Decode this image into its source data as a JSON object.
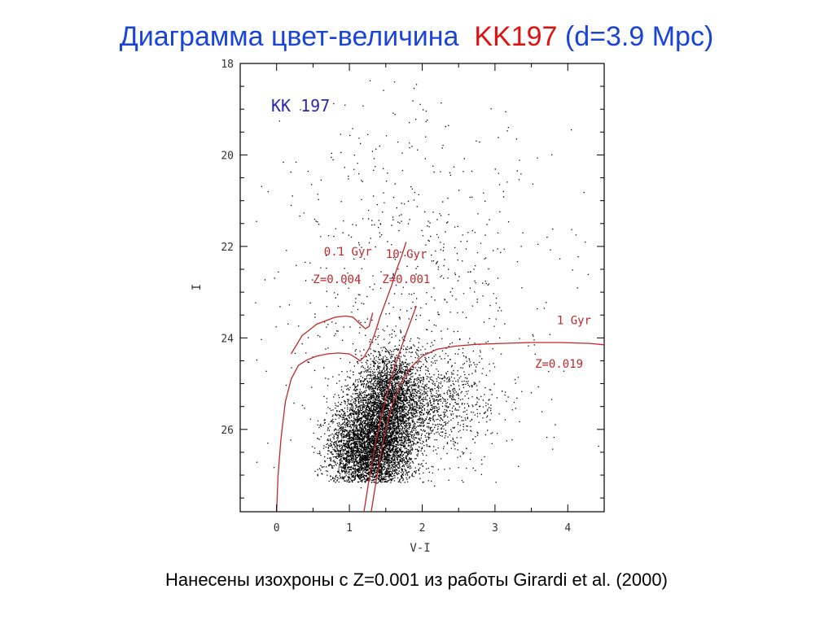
{
  "slide": {
    "title_main": "Диаграмма цвет-величина",
    "title_object": "KK197",
    "title_distance": "(d=3.9 Mpc)",
    "caption": "Нанесены изохроны с Z=0.001 из работы Girardi et al. (2000)"
  },
  "colors": {
    "title": "#1a44d8",
    "accent": "#e01010",
    "isochrone": "#c0282a",
    "points": "#000000",
    "panel_label": "#2a2aa8"
  },
  "chart_data": {
    "type": "scatter",
    "title": "",
    "panel_label": "KK 197",
    "xlabel": "V-I",
    "ylabel": "I",
    "xlim": [
      -0.5,
      4.5
    ],
    "ylim": [
      27.8,
      18
    ],
    "y_inverted": true,
    "x_ticks": [
      0,
      1,
      2,
      3,
      4
    ],
    "y_ticks": [
      18,
      20,
      22,
      24,
      26
    ],
    "grid": false,
    "legend": "none",
    "scatter": {
      "description_free": true,
      "components": [
        {
          "x_mean": 1.3,
          "x_sd": 0.28,
          "y_mean": 26.4,
          "y_sd": 0.55,
          "weight": 0.55,
          "y_max": 27.15
        },
        {
          "x_mean": 1.55,
          "x_sd": 0.22,
          "y_mean": 25.3,
          "y_sd": 0.5,
          "weight": 0.25,
          "y_max": 27.15
        },
        {
          "x_mean": 2.1,
          "x_sd": 0.45,
          "y_mean": 25.4,
          "y_sd": 0.6,
          "weight": 0.12,
          "y_max": 27.15
        },
        {
          "x_mean": 1.8,
          "x_sd": 1.0,
          "y_mean": 23.0,
          "y_sd": 2.2,
          "weight": 0.08,
          "y_max": 27.3
        }
      ],
      "n_points": 9000
    },
    "isochrones": [
      {
        "name": "0.1 Gyr Z=0.004",
        "label_age": "0.1 Gyr",
        "label_z": "Z=0.004",
        "label_pos": [
          0.65,
          22.2
        ],
        "label_z_pos": [
          0.5,
          22.8
        ],
        "x": [
          0.0,
          0.02,
          0.06,
          0.12,
          0.2,
          0.3,
          0.42,
          0.55,
          0.7,
          0.85,
          1.0,
          1.1,
          1.15,
          1.2,
          1.28,
          1.35,
          1.42,
          1.5,
          1.58,
          1.65,
          1.72,
          1.78
        ],
        "y": [
          27.8,
          27.0,
          26.2,
          25.4,
          24.9,
          24.6,
          24.48,
          24.4,
          24.35,
          24.33,
          24.35,
          24.45,
          24.5,
          24.42,
          24.2,
          23.9,
          23.55,
          23.2,
          22.85,
          22.5,
          22.2,
          21.9
        ]
      },
      {
        "name": "0.1 Gyr Z=0.004 blue loop",
        "label_age": "",
        "label_z": "",
        "x": [
          0.2,
          0.35,
          0.55,
          0.8,
          0.95,
          1.05,
          1.15,
          1.22,
          1.27,
          1.32
        ],
        "y": [
          24.35,
          23.95,
          23.7,
          23.55,
          23.52,
          23.55,
          23.7,
          23.8,
          23.75,
          23.45
        ]
      },
      {
        "name": "10 Gyr Z=0.001",
        "label_age": "10 Gyr",
        "label_z": "Z=0.001",
        "label_pos": [
          1.5,
          22.25
        ],
        "label_z_pos": [
          1.45,
          22.8
        ],
        "x": [
          1.2,
          1.28,
          1.37,
          1.47,
          1.57,
          1.67,
          1.77,
          1.85,
          1.92
        ],
        "y": [
          27.8,
          27.0,
          26.2,
          25.5,
          24.9,
          24.4,
          23.95,
          23.6,
          23.3
        ]
      },
      {
        "name": "10 Gyr Z=0.001 second branch",
        "label_age": "",
        "label_z": "",
        "x": [
          1.3,
          1.38,
          1.47,
          1.58,
          1.7,
          1.84,
          2.0,
          2.2,
          2.45,
          2.75,
          3.1,
          3.5,
          3.9,
          4.3,
          4.5
        ],
        "y": [
          27.8,
          27.0,
          26.2,
          25.5,
          25.0,
          24.65,
          24.4,
          24.25,
          24.18,
          24.14,
          24.12,
          24.1,
          24.1,
          24.12,
          24.15
        ]
      }
    ],
    "isochrone_labels_extra": [
      {
        "age": "1 Gyr",
        "z": "Z=0.019",
        "age_pos": [
          3.85,
          23.7
        ],
        "z_pos": [
          3.55,
          24.65
        ]
      }
    ]
  }
}
